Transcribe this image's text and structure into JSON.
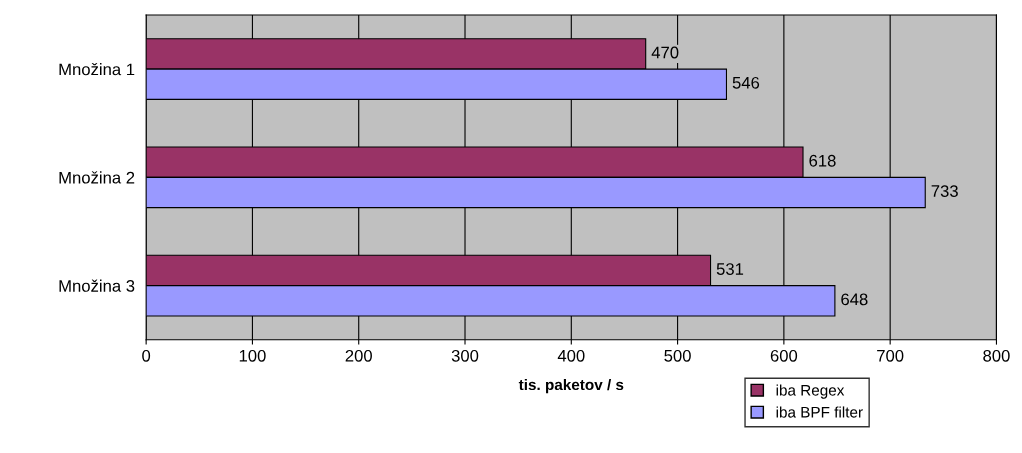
{
  "chart_data": {
    "type": "bar",
    "orientation": "horizontal",
    "xlabel": "tis. paketov / s",
    "categories": [
      "Množina 1",
      "Množina 2",
      "Množina 3"
    ],
    "series": [
      {
        "name": "iba Regex",
        "color": "#993366",
        "values": [
          470,
          618,
          531
        ]
      },
      {
        "name": "iba BPF filter",
        "color": "#9999ff",
        "values": [
          546,
          733,
          648
        ]
      }
    ],
    "xlim": [
      0,
      800
    ],
    "xticks": [
      0,
      100,
      200,
      300,
      400,
      500,
      600,
      700,
      800
    ],
    "grid": "x",
    "data_labels": true,
    "legend": "bottom right"
  }
}
